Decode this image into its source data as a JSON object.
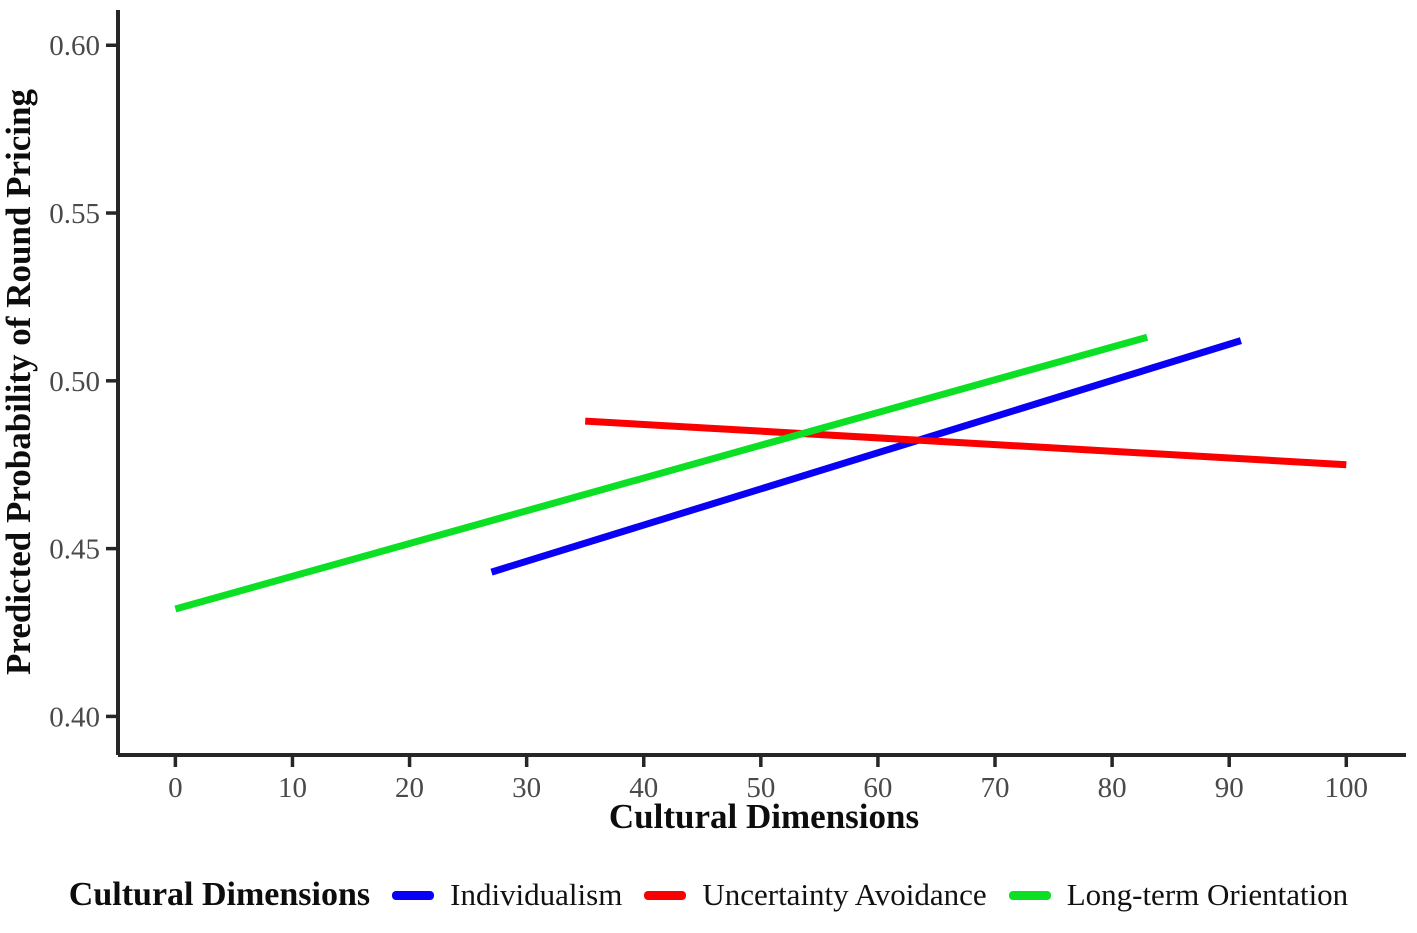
{
  "chart_data": {
    "type": "line",
    "title": "",
    "xlabel": "Cultural Dimensions",
    "ylabel": "Predicted Probability of Round Pricing",
    "xlim": [
      -4.9,
      105.1
    ],
    "ylim": [
      0.3885,
      0.6105
    ],
    "grid": false,
    "xticks": {
      "values": [
        0,
        10,
        20,
        30,
        40,
        50,
        60,
        70,
        80,
        90,
        100
      ],
      "labels": [
        "0",
        "10",
        "20",
        "30",
        "40",
        "50",
        "60",
        "70",
        "80",
        "90",
        "100"
      ]
    },
    "yticks": {
      "values": [
        0.4,
        0.45,
        0.5,
        0.55,
        0.6
      ],
      "labels": [
        "0.40",
        "0.45",
        "0.50",
        "0.55",
        "0.60"
      ]
    },
    "legend_position": "bottom",
    "legend_title": "Cultural Dimensions",
    "series": [
      {
        "name": "Individualism",
        "color": "#0a00f5",
        "x": [
          27,
          91
        ],
        "y": [
          0.443,
          0.512
        ]
      },
      {
        "name": "Uncertainty Avoidance",
        "color": "#fa0000",
        "x": [
          35,
          100
        ],
        "y": [
          0.488,
          0.475
        ]
      },
      {
        "name": "Long-term Orientation",
        "color": "#0ce024",
        "x": [
          0,
          83
        ],
        "y": [
          0.432,
          0.513
        ]
      }
    ]
  }
}
